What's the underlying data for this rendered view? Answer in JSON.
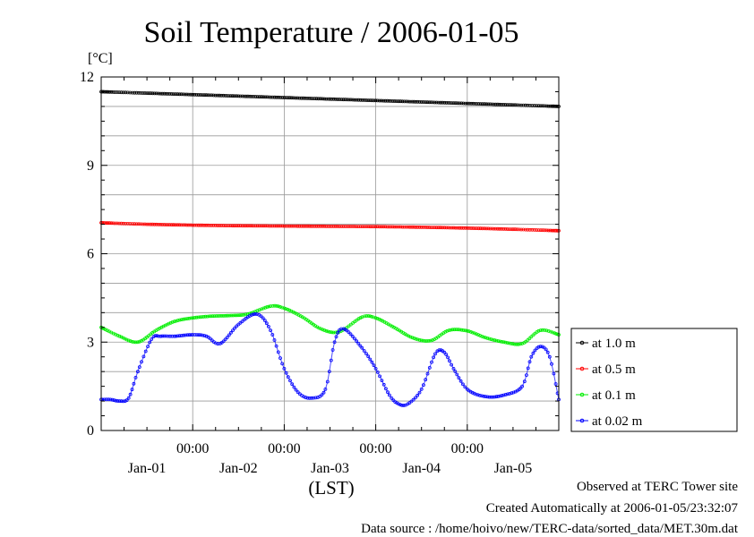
{
  "chart_data": {
    "type": "line",
    "title": "Soil Temperature / 2006-01-05",
    "ylabel": "[°C]",
    "xlabel": "(LST)",
    "ylim": [
      0,
      12
    ],
    "yticks": [
      0,
      3,
      6,
      9,
      12
    ],
    "xlim": [
      0,
      5
    ],
    "x_time_labels": [
      {
        "x": 1,
        "label": "00:00"
      },
      {
        "x": 2,
        "label": "00:00"
      },
      {
        "x": 3,
        "label": "00:00"
      },
      {
        "x": 4,
        "label": "00:00"
      }
    ],
    "x_day_labels": [
      {
        "x": 0.5,
        "label": "Jan-01"
      },
      {
        "x": 1.5,
        "label": "Jan-02"
      },
      {
        "x": 2.5,
        "label": "Jan-03"
      },
      {
        "x": 3.5,
        "label": "Jan-04"
      },
      {
        "x": 4.5,
        "label": "Jan-05"
      }
    ],
    "grid": true,
    "legend_position": "right",
    "series": [
      {
        "name": "at 1.0 m",
        "color": "#000000",
        "x": [
          0,
          0.5,
          1,
          1.5,
          2,
          2.5,
          3,
          3.5,
          4,
          4.5,
          5
        ],
        "y": [
          11.5,
          11.45,
          11.4,
          11.35,
          11.3,
          11.25,
          11.2,
          11.15,
          11.1,
          11.05,
          11.0
        ]
      },
      {
        "name": "at 0.5 m",
        "color": "#ff0000",
        "x": [
          0,
          0.5,
          1,
          1.5,
          2,
          2.5,
          3,
          3.5,
          4,
          4.5,
          5
        ],
        "y": [
          7.05,
          7.0,
          6.97,
          6.95,
          6.94,
          6.93,
          6.92,
          6.9,
          6.87,
          6.83,
          6.78
        ]
      },
      {
        "name": "at 0.1 m",
        "color": "#00ee00",
        "x": [
          0,
          0.2,
          0.4,
          0.6,
          0.8,
          1.0,
          1.2,
          1.4,
          1.6,
          1.85,
          2.0,
          2.2,
          2.4,
          2.6,
          2.85,
          3.0,
          3.2,
          3.4,
          3.6,
          3.8,
          4.0,
          4.2,
          4.4,
          4.6,
          4.8,
          5.0
        ],
        "y": [
          3.5,
          3.2,
          3.0,
          3.4,
          3.7,
          3.82,
          3.88,
          3.9,
          3.95,
          4.22,
          4.15,
          3.85,
          3.45,
          3.35,
          3.85,
          3.82,
          3.5,
          3.15,
          3.05,
          3.4,
          3.38,
          3.15,
          3.0,
          2.95,
          3.4,
          3.25
        ]
      },
      {
        "name": "at 0.02 m",
        "color": "#0000ff",
        "x": [
          0,
          0.1,
          0.2,
          0.3,
          0.4,
          0.55,
          0.65,
          0.8,
          1.0,
          1.15,
          1.3,
          1.5,
          1.7,
          1.85,
          2.0,
          2.15,
          2.3,
          2.45,
          2.55,
          2.65,
          2.85,
          3.0,
          3.15,
          3.25,
          3.35,
          3.5,
          3.65,
          3.75,
          3.85,
          4.0,
          4.2,
          4.4,
          4.6,
          4.7,
          4.8,
          4.9,
          5.0
        ],
        "y": [
          1.05,
          1.05,
          1.0,
          1.1,
          2.0,
          3.1,
          3.2,
          3.2,
          3.25,
          3.2,
          2.95,
          3.6,
          3.95,
          3.4,
          2.1,
          1.3,
          1.1,
          1.4,
          3.0,
          3.45,
          2.8,
          2.1,
          1.2,
          0.9,
          0.9,
          1.4,
          2.6,
          2.65,
          2.1,
          1.4,
          1.15,
          1.2,
          1.5,
          2.5,
          2.85,
          2.5,
          1.05
        ]
      }
    ]
  },
  "footer": {
    "site": "Observed at TERC Tower site",
    "created": "Created Automatically at 2006-01-05/23:32:07",
    "source": "Data source : /home/hoivo/new/TERC-data/sorted_data/MET.30m.dat"
  }
}
